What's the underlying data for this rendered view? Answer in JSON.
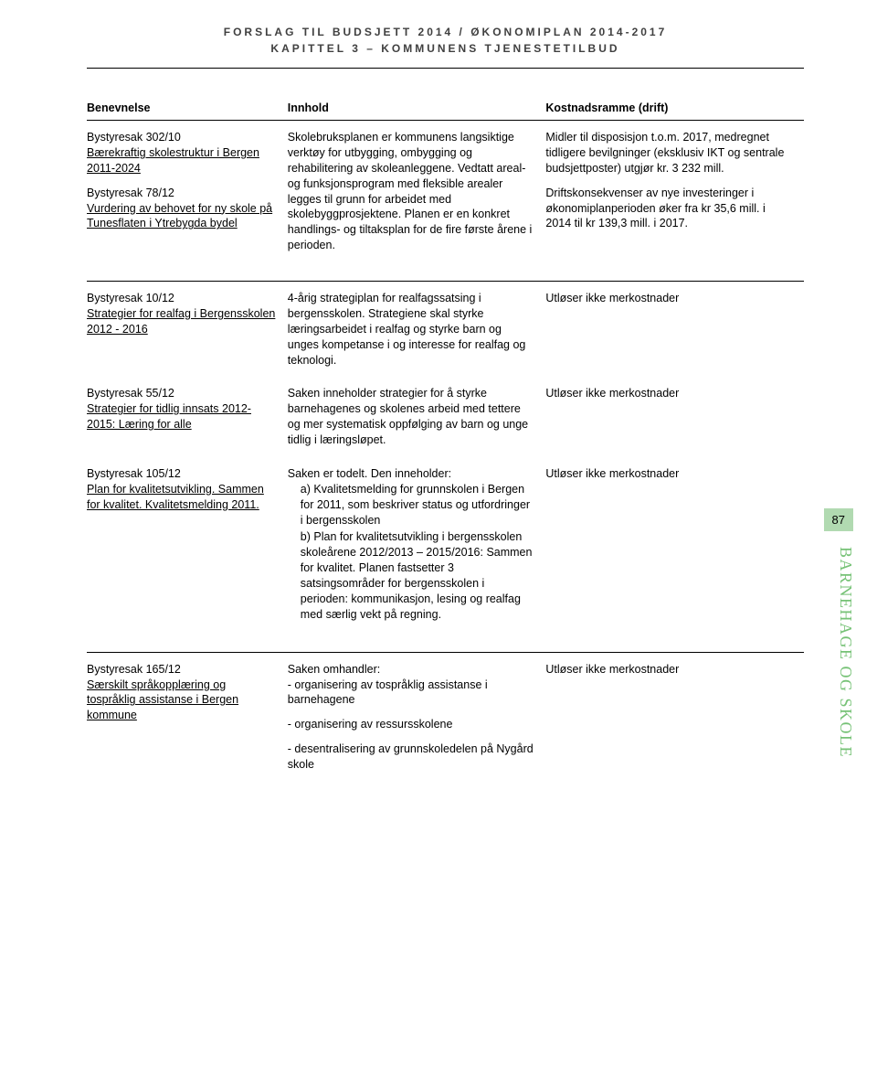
{
  "header": {
    "line1": "FORSLAG TIL BUDSJETT 2014 / ØKONOMIPLAN 2014-2017",
    "line2": "KAPITTEL 3 – KOMMUNENS TJENESTETILBUD"
  },
  "columns": {
    "c1": "Benevnelse",
    "c2": "Innhold",
    "c3": "Kostnadsramme (drift)"
  },
  "rows": [
    {
      "benevnelse": {
        "p1a": "Bystyresak 302/10",
        "p1b": "Bærekraftig skolestruktur i Bergen 2011-2024",
        "p2a": "Bystyresak 78/12",
        "p2b": "Vurdering av behovet for ny skole på Tunesflaten i Ytrebygda bydel"
      },
      "innhold": "Skolebruksplanen er kommunens langsiktige verktøy for utbygging, ombygging og rehabilitering av skoleanleggene. Vedtatt areal- og funksjonsprogram med fleksible arealer legges til grunn for arbeidet med skolebyggprosjektene. Planen er en konkret handlings- og tiltaksplan for de fire første årene i perioden.",
      "kostnad": {
        "p1": "Midler til disposisjon t.o.m. 2017, medregnet tidligere bevilgninger (eksklusiv IKT og sentrale budsjettposter) utgjør kr. 3 232 mill.",
        "p2": "Driftskonsekvenser av nye investeringer i økonomiplanperioden øker fra kr 35,6 mill. i 2014 til kr 139,3 mill. i 2017."
      }
    },
    {
      "benevnelse": {
        "p1a": "Bystyresak 10/12",
        "p1b": "Strategier for realfag i Bergensskolen 2012 - 2016"
      },
      "innhold": "4-årig strategiplan for realfagssatsing i bergensskolen. Strategiene skal styrke læringsarbeidet i realfag og styrke barn og unges kompetanse i og interesse for realfag og teknologi.",
      "kostnad": "Utløser ikke merkostnader"
    },
    {
      "benevnelse": {
        "p1a": "Bystyresak 55/12",
        "p1b": "Strategier for tidlig innsats 2012-2015: Læring for alle"
      },
      "innhold": "Saken inneholder strategier for å styrke barnehagenes og skolenes arbeid med tettere og mer systematisk oppfølging av barn og unge tidlig i læringsløpet.",
      "kostnad": "Utløser ikke merkostnader"
    },
    {
      "benevnelse": {
        "p1a": "Bystyresak 105/12",
        "p1b": "Plan for kvalitetsutvikling. Sammen for kvalitet. Kvalitetsmelding 2011."
      },
      "innhold_intro": "Saken er todelt. Den inneholder:",
      "innhold_a": "a) Kvalitetsmelding for grunnskolen i Bergen for 2011, som beskriver status og utfordringer i bergens­skolen",
      "innhold_b": "b) Plan for kvalitetsutvikling i bergensskolen skoleårene 2012/2013 – 2015/2016: Sammen for kvalitet. Planen fastsetter 3 satsingsområder for bergensskolen i perioden: kommunikasjon, lesing og realfag med særlig vekt på regning.",
      "kostnad": "Utløser ikke merkostnader"
    },
    {
      "benevnelse": {
        "p1a": "Bystyresak 165/12",
        "p1b": "Særskilt språkopplæring og tospråklig assistanse i Bergen kommune"
      },
      "innhold_intro": "Saken omhandler:",
      "innhold_items": [
        "- organisering av tospråklig assistanse i barnehagene",
        "- organisering av ressursskolene",
        "- desentralisering av grunnskoledelen på Nygård skole"
      ],
      "kostnad": "Utløser ikke merkostnader"
    }
  ],
  "sidebar": {
    "page": "87",
    "label": "BARNEHAGE OG SKOLE",
    "badge_bg": "#b1dab1",
    "label_color": "#76c276"
  }
}
